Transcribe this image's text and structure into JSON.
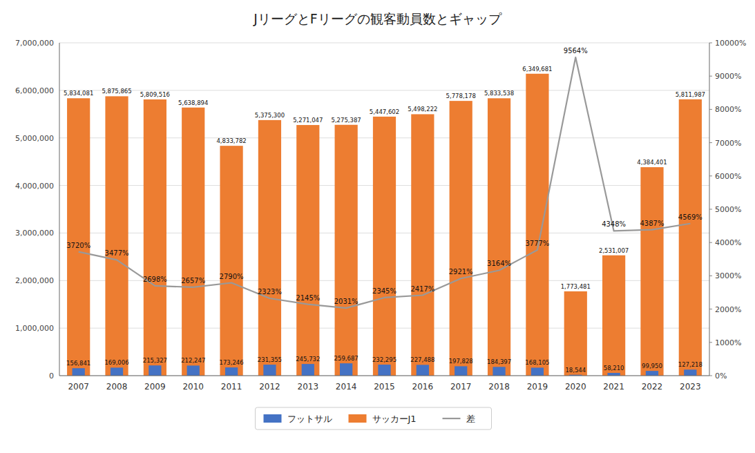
{
  "chart_data": {
    "type": "bar",
    "title": "JリーグとFリーグの観客動員数とギャップ",
    "categories": [
      "2007",
      "2008",
      "2009",
      "2010",
      "2011",
      "2012",
      "2013",
      "2014",
      "2015",
      "2016",
      "2017",
      "2018",
      "2019",
      "2020",
      "2021",
      "2022",
      "2023"
    ],
    "series": [
      {
        "name": "フットサル",
        "type": "bar",
        "color": "#4472c4",
        "values": [
          156841,
          169006,
          215327,
          212247,
          173246,
          231355,
          245732,
          259687,
          232295,
          227488,
          197828,
          184397,
          168105,
          18544,
          58210,
          99950,
          127218
        ],
        "value_labels": [
          "156,841",
          "169,006",
          "215,327",
          "212,247",
          "173,246",
          "231,355",
          "245,732",
          "259,687",
          "232,295",
          "227,488",
          "197,828",
          "184,397",
          "168,105",
          "18,544",
          "58,210",
          "99,950",
          "127,218"
        ]
      },
      {
        "name": "サッカーJ1",
        "type": "bar",
        "color": "#ed7d31",
        "values": [
          5834081,
          5875865,
          5809516,
          5638894,
          4833782,
          5375300,
          5271047,
          5275387,
          5447602,
          5498222,
          5778178,
          5833538,
          6349681,
          1773481,
          2531007,
          4384401,
          5811987
        ],
        "value_labels": [
          "5,834,081",
          "5,875,865",
          "5,809,516",
          "5,638,894",
          "4,833,782",
          "5,375,300",
          "5,271,047",
          "5,275,387",
          "5,447,602",
          "5,498,222",
          "5,778,178",
          "5,833,538",
          "6,349,681",
          "1,773,481",
          "2,531,007",
          "4,384,401",
          "5,811,987"
        ]
      },
      {
        "name": "差",
        "type": "line",
        "axis": "y2",
        "color": "#999999",
        "values": [
          3720,
          3477,
          2698,
          2657,
          2790,
          2323,
          2145,
          2031,
          2345,
          2417,
          2921,
          3164,
          3777,
          9564,
          4348,
          4387,
          4569
        ],
        "value_labels": [
          "3720%",
          "3477%",
          "2698%",
          "2657%",
          "2790%",
          "2323%",
          "2145%",
          "2031%",
          "2345%",
          "2417%",
          "2921%",
          "3164%",
          "3777%",
          "9564%",
          "4348%",
          "4387%",
          "4569%"
        ]
      }
    ],
    "ylim": [
      0,
      7000000
    ],
    "yticks": [
      0,
      {
        "value": 1000000,
        "label": "1,000,000"
      },
      {
        "value": 2000000,
        "label": "2,000,000"
      },
      {
        "value": 3000000,
        "label": "3,000,000"
      },
      {
        "value": 4000000,
        "label": "4,000,000"
      },
      {
        "value": 5000000,
        "label": "5,000,000"
      },
      {
        "value": 6000000,
        "label": "6,000,000"
      },
      {
        "value": 7000000,
        "label": "7,000,000"
      }
    ],
    "y2lim": [
      0,
      10000
    ],
    "y2ticks": [
      {
        "value": 0,
        "label": "0%"
      },
      {
        "value": 1000,
        "label": "1000%"
      },
      {
        "value": 2000,
        "label": "2000%"
      },
      {
        "value": 3000,
        "label": "3000%"
      },
      {
        "value": 4000,
        "label": "4000%"
      },
      {
        "value": 5000,
        "label": "5000%"
      },
      {
        "value": 6000,
        "label": "6000%"
      },
      {
        "value": 7000,
        "label": "7000%"
      },
      {
        "value": 8000,
        "label": "8000%"
      },
      {
        "value": 9000,
        "label": "9000%"
      },
      {
        "value": 10000,
        "label": "10000%"
      }
    ],
    "grid": true,
    "legend": "bottom",
    "data_labels": true
  }
}
